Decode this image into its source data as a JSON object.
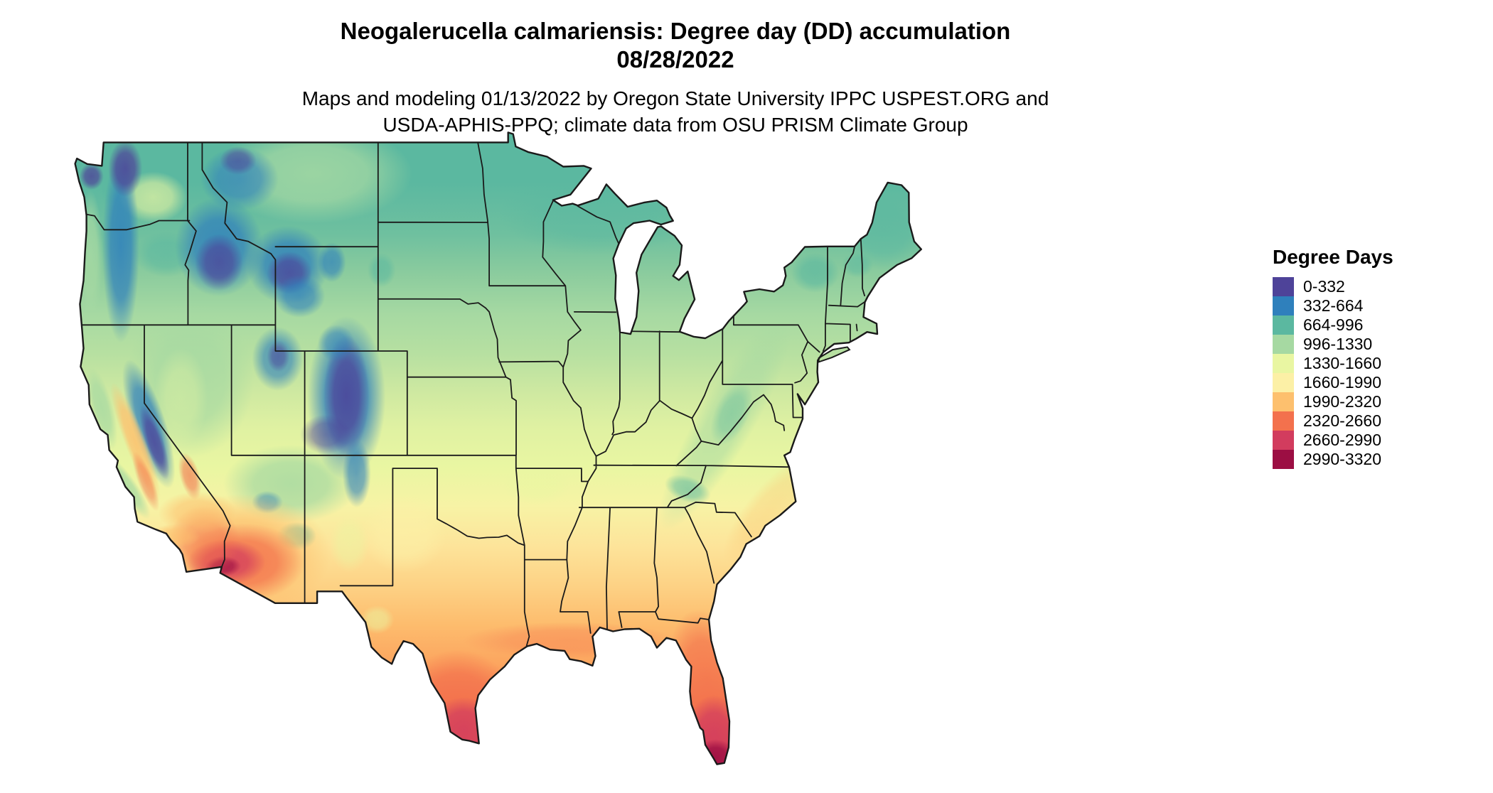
{
  "header": {
    "title": "Neogalerucella calmariensis: Degree day (DD) accumulation",
    "date": "08/28/2022",
    "attribution_line1": "Maps and modeling 01/13/2022 by Oregon State University IPPC USPEST.ORG and",
    "attribution_line2": "USDA-APHIS-PPQ; climate data from OSU PRISM Climate Group"
  },
  "map": {
    "region": "Contiguous United States",
    "type": "degree-day raster choropleth"
  },
  "legend": {
    "title": "Degree Days",
    "entries": [
      {
        "range": "0-332",
        "color": "#4e4399"
      },
      {
        "range": "332-664",
        "color": "#2f80bc"
      },
      {
        "range": "664-996",
        "color": "#5bb8a0"
      },
      {
        "range": "996-1330",
        "color": "#a6d9a2"
      },
      {
        "range": "1330-1660",
        "color": "#e9f6a2"
      },
      {
        "range": "1660-1990",
        "color": "#fcf0a6"
      },
      {
        "range": "1990-2320",
        "color": "#fdc06e"
      },
      {
        "range": "2320-2660",
        "color": "#f3714d"
      },
      {
        "range": "2660-2990",
        "color": "#d23c5e"
      },
      {
        "range": "2990-3320",
        "color": "#9c0e43"
      }
    ]
  }
}
